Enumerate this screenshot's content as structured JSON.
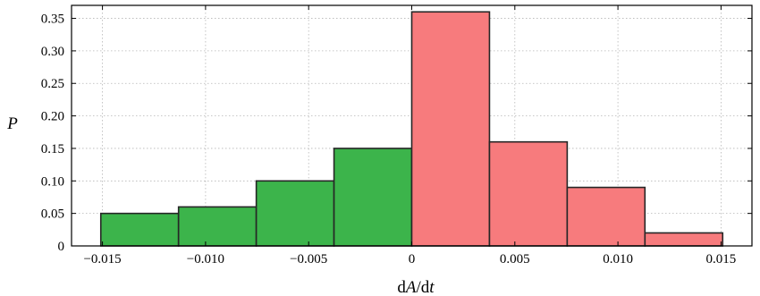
{
  "chart_data": {
    "type": "bar",
    "title": "",
    "xlabel_parts": [
      "d",
      "A",
      "/d",
      "t"
    ],
    "ylabel": "P",
    "xlim": [
      -0.0165,
      0.0165
    ],
    "ylim": [
      0,
      0.37
    ],
    "grid": true,
    "bins": [
      {
        "x0": -0.01508,
        "x1": -0.01131,
        "value": 0.05,
        "color": "#3cb44b"
      },
      {
        "x0": -0.01131,
        "x1": -0.00754,
        "value": 0.06,
        "color": "#3cb44b"
      },
      {
        "x0": -0.00754,
        "x1": -0.00377,
        "value": 0.1,
        "color": "#3cb44b"
      },
      {
        "x0": -0.00377,
        "x1": 0.0,
        "value": 0.15,
        "color": "#3cb44b"
      },
      {
        "x0": 0.0,
        "x1": 0.00377,
        "value": 0.36,
        "color": "#f77b7d"
      },
      {
        "x0": 0.00377,
        "x1": 0.00754,
        "value": 0.16,
        "color": "#f77b7d"
      },
      {
        "x0": 0.00754,
        "x1": 0.01131,
        "value": 0.09,
        "color": "#f77b7d"
      },
      {
        "x0": 0.01131,
        "x1": 0.01508,
        "value": 0.02,
        "color": "#f77b7d"
      }
    ],
    "x_ticks": [
      {
        "value": -0.015,
        "label": "−0.015"
      },
      {
        "value": -0.01,
        "label": "−0.010"
      },
      {
        "value": -0.005,
        "label": "−0.005"
      },
      {
        "value": 0.0,
        "label": "0"
      },
      {
        "value": 0.005,
        "label": "0.005"
      },
      {
        "value": 0.01,
        "label": "0.010"
      },
      {
        "value": 0.015,
        "label": "0.015"
      }
    ],
    "y_ticks": [
      {
        "value": 0.0,
        "label": "0"
      },
      {
        "value": 0.05,
        "label": "0.05"
      },
      {
        "value": 0.1,
        "label": "0.10"
      },
      {
        "value": 0.15,
        "label": "0.15"
      },
      {
        "value": 0.2,
        "label": "0.20"
      },
      {
        "value": 0.25,
        "label": "0.25"
      },
      {
        "value": 0.3,
        "label": "0.30"
      },
      {
        "value": 0.35,
        "label": "0.35"
      }
    ]
  }
}
